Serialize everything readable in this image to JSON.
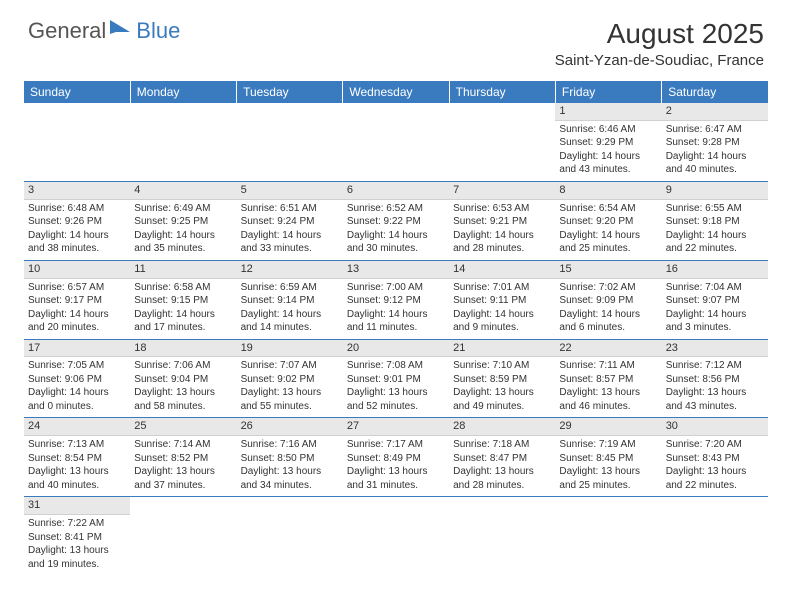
{
  "brand": {
    "part1": "General",
    "part2": "Blue"
  },
  "title": "August 2025",
  "location": "Saint-Yzan-de-Soudiac, France",
  "colors": {
    "header_bg": "#3a7bbf",
    "header_text": "#ffffff",
    "daynum_bg": "#e8e8e8",
    "row_border": "#3a7bbf",
    "text": "#333333",
    "brand_blue": "#3a7bbf",
    "brand_gray": "#555555"
  },
  "weekdays": [
    "Sunday",
    "Monday",
    "Tuesday",
    "Wednesday",
    "Thursday",
    "Friday",
    "Saturday"
  ],
  "weeks": [
    [
      null,
      null,
      null,
      null,
      null,
      {
        "n": "1",
        "sunrise": "Sunrise: 6:46 AM",
        "sunset": "Sunset: 9:29 PM",
        "daylight": "Daylight: 14 hours and 43 minutes."
      },
      {
        "n": "2",
        "sunrise": "Sunrise: 6:47 AM",
        "sunset": "Sunset: 9:28 PM",
        "daylight": "Daylight: 14 hours and 40 minutes."
      }
    ],
    [
      {
        "n": "3",
        "sunrise": "Sunrise: 6:48 AM",
        "sunset": "Sunset: 9:26 PM",
        "daylight": "Daylight: 14 hours and 38 minutes."
      },
      {
        "n": "4",
        "sunrise": "Sunrise: 6:49 AM",
        "sunset": "Sunset: 9:25 PM",
        "daylight": "Daylight: 14 hours and 35 minutes."
      },
      {
        "n": "5",
        "sunrise": "Sunrise: 6:51 AM",
        "sunset": "Sunset: 9:24 PM",
        "daylight": "Daylight: 14 hours and 33 minutes."
      },
      {
        "n": "6",
        "sunrise": "Sunrise: 6:52 AM",
        "sunset": "Sunset: 9:22 PM",
        "daylight": "Daylight: 14 hours and 30 minutes."
      },
      {
        "n": "7",
        "sunrise": "Sunrise: 6:53 AM",
        "sunset": "Sunset: 9:21 PM",
        "daylight": "Daylight: 14 hours and 28 minutes."
      },
      {
        "n": "8",
        "sunrise": "Sunrise: 6:54 AM",
        "sunset": "Sunset: 9:20 PM",
        "daylight": "Daylight: 14 hours and 25 minutes."
      },
      {
        "n": "9",
        "sunrise": "Sunrise: 6:55 AM",
        "sunset": "Sunset: 9:18 PM",
        "daylight": "Daylight: 14 hours and 22 minutes."
      }
    ],
    [
      {
        "n": "10",
        "sunrise": "Sunrise: 6:57 AM",
        "sunset": "Sunset: 9:17 PM",
        "daylight": "Daylight: 14 hours and 20 minutes."
      },
      {
        "n": "11",
        "sunrise": "Sunrise: 6:58 AM",
        "sunset": "Sunset: 9:15 PM",
        "daylight": "Daylight: 14 hours and 17 minutes."
      },
      {
        "n": "12",
        "sunrise": "Sunrise: 6:59 AM",
        "sunset": "Sunset: 9:14 PM",
        "daylight": "Daylight: 14 hours and 14 minutes."
      },
      {
        "n": "13",
        "sunrise": "Sunrise: 7:00 AM",
        "sunset": "Sunset: 9:12 PM",
        "daylight": "Daylight: 14 hours and 11 minutes."
      },
      {
        "n": "14",
        "sunrise": "Sunrise: 7:01 AM",
        "sunset": "Sunset: 9:11 PM",
        "daylight": "Daylight: 14 hours and 9 minutes."
      },
      {
        "n": "15",
        "sunrise": "Sunrise: 7:02 AM",
        "sunset": "Sunset: 9:09 PM",
        "daylight": "Daylight: 14 hours and 6 minutes."
      },
      {
        "n": "16",
        "sunrise": "Sunrise: 7:04 AM",
        "sunset": "Sunset: 9:07 PM",
        "daylight": "Daylight: 14 hours and 3 minutes."
      }
    ],
    [
      {
        "n": "17",
        "sunrise": "Sunrise: 7:05 AM",
        "sunset": "Sunset: 9:06 PM",
        "daylight": "Daylight: 14 hours and 0 minutes."
      },
      {
        "n": "18",
        "sunrise": "Sunrise: 7:06 AM",
        "sunset": "Sunset: 9:04 PM",
        "daylight": "Daylight: 13 hours and 58 minutes."
      },
      {
        "n": "19",
        "sunrise": "Sunrise: 7:07 AM",
        "sunset": "Sunset: 9:02 PM",
        "daylight": "Daylight: 13 hours and 55 minutes."
      },
      {
        "n": "20",
        "sunrise": "Sunrise: 7:08 AM",
        "sunset": "Sunset: 9:01 PM",
        "daylight": "Daylight: 13 hours and 52 minutes."
      },
      {
        "n": "21",
        "sunrise": "Sunrise: 7:10 AM",
        "sunset": "Sunset: 8:59 PM",
        "daylight": "Daylight: 13 hours and 49 minutes."
      },
      {
        "n": "22",
        "sunrise": "Sunrise: 7:11 AM",
        "sunset": "Sunset: 8:57 PM",
        "daylight": "Daylight: 13 hours and 46 minutes."
      },
      {
        "n": "23",
        "sunrise": "Sunrise: 7:12 AM",
        "sunset": "Sunset: 8:56 PM",
        "daylight": "Daylight: 13 hours and 43 minutes."
      }
    ],
    [
      {
        "n": "24",
        "sunrise": "Sunrise: 7:13 AM",
        "sunset": "Sunset: 8:54 PM",
        "daylight": "Daylight: 13 hours and 40 minutes."
      },
      {
        "n": "25",
        "sunrise": "Sunrise: 7:14 AM",
        "sunset": "Sunset: 8:52 PM",
        "daylight": "Daylight: 13 hours and 37 minutes."
      },
      {
        "n": "26",
        "sunrise": "Sunrise: 7:16 AM",
        "sunset": "Sunset: 8:50 PM",
        "daylight": "Daylight: 13 hours and 34 minutes."
      },
      {
        "n": "27",
        "sunrise": "Sunrise: 7:17 AM",
        "sunset": "Sunset: 8:49 PM",
        "daylight": "Daylight: 13 hours and 31 minutes."
      },
      {
        "n": "28",
        "sunrise": "Sunrise: 7:18 AM",
        "sunset": "Sunset: 8:47 PM",
        "daylight": "Daylight: 13 hours and 28 minutes."
      },
      {
        "n": "29",
        "sunrise": "Sunrise: 7:19 AM",
        "sunset": "Sunset: 8:45 PM",
        "daylight": "Daylight: 13 hours and 25 minutes."
      },
      {
        "n": "30",
        "sunrise": "Sunrise: 7:20 AM",
        "sunset": "Sunset: 8:43 PM",
        "daylight": "Daylight: 13 hours and 22 minutes."
      }
    ],
    [
      {
        "n": "31",
        "sunrise": "Sunrise: 7:22 AM",
        "sunset": "Sunset: 8:41 PM",
        "daylight": "Daylight: 13 hours and 19 minutes."
      },
      null,
      null,
      null,
      null,
      null,
      null
    ]
  ]
}
